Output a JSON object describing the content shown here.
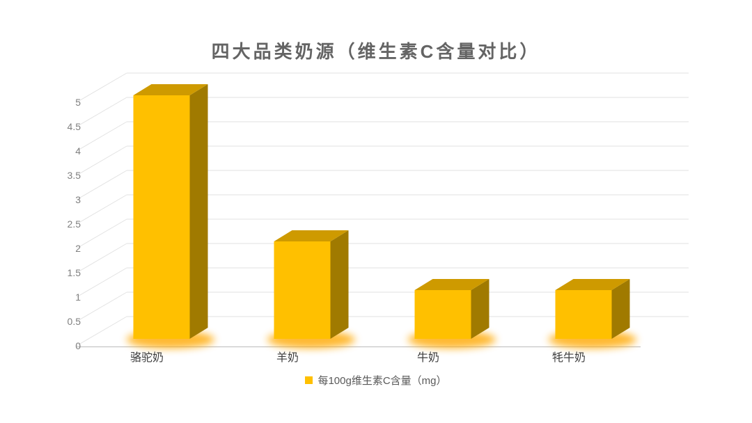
{
  "chart_data": {
    "type": "bar",
    "variant": "3d-column",
    "title": "四大品类奶源（维生素C含量对比）",
    "categories": [
      "骆驼奶",
      "羊奶",
      "牛奶",
      "牦牛奶"
    ],
    "series": [
      {
        "name": "每100g维生素C含量（mg）",
        "values": [
          5,
          2,
          1,
          1
        ]
      }
    ],
    "xlabel": "",
    "ylabel": "",
    "ylim": [
      0,
      5
    ],
    "ytick_step": 0.5,
    "ytick_labels": [
      "0",
      "0.5",
      "1",
      "1.5",
      "2",
      "2.5",
      "3",
      "3.5",
      "4",
      "4.5",
      "5"
    ],
    "grid": true,
    "legend_position": "bottom",
    "colors": {
      "bar_front": "#FFC000",
      "bar_top": "#CE9A00",
      "bar_side": "#A07A00",
      "base_glow": "#FFA800",
      "gridline": "#E2E2E2",
      "axis_line": "#C4C4C4",
      "title_text": "#646464",
      "tick_text": "#7F7F7F",
      "category_text": "#3D3D3D",
      "legend_text": "#595959",
      "background": "#FFFFFF"
    }
  },
  "legend": {
    "label": "每100g维生素C含量（mg）",
    "marker_color": "#FFC000"
  }
}
